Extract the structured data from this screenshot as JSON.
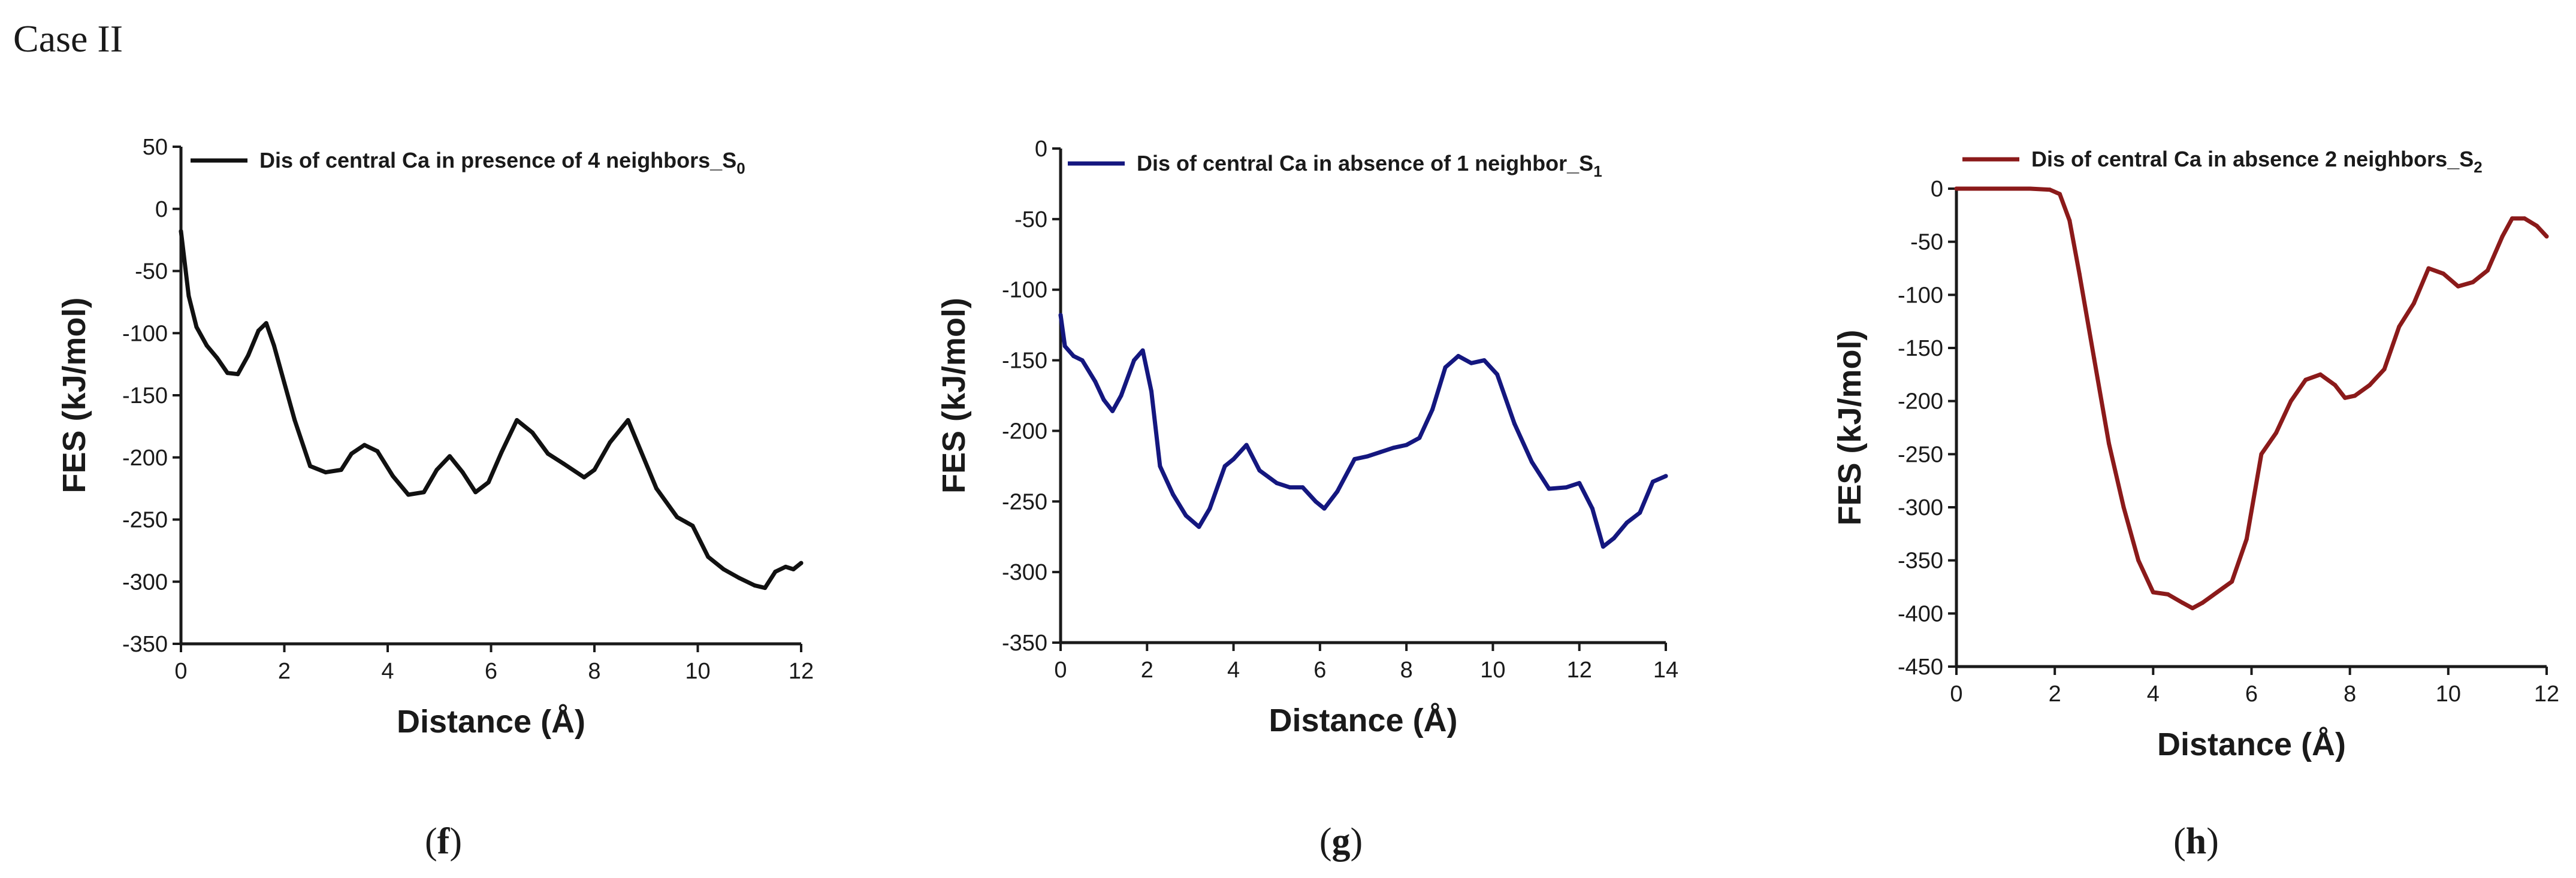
{
  "page_title": "Case II",
  "chart_data": [
    {
      "type": "line",
      "panel_label": "f",
      "color": "#111111",
      "legend": {
        "text": "Dis of central Ca in presence of 4 neighbors_S",
        "subscript": "0"
      },
      "xlabel": "Distance (Å)",
      "ylabel": "FES (kJ/mol)",
      "xlim": [
        0,
        12
      ],
      "ylim": [
        -350,
        50
      ],
      "xticks": [
        0,
        2,
        4,
        6,
        8,
        10,
        12
      ],
      "yticks": [
        50,
        0,
        -50,
        -100,
        -150,
        -200,
        -250,
        -300,
        -350
      ],
      "x": [
        0,
        0.15,
        0.3,
        0.5,
        0.7,
        0.9,
        1.1,
        1.3,
        1.5,
        1.65,
        1.8,
        2.0,
        2.2,
        2.5,
        2.8,
        3.1,
        3.3,
        3.55,
        3.8,
        4.1,
        4.4,
        4.7,
        4.95,
        5.2,
        5.45,
        5.7,
        5.95,
        6.2,
        6.5,
        6.8,
        7.1,
        7.4,
        7.8,
        8.0,
        8.3,
        8.65,
        8.9,
        9.2,
        9.6,
        9.9,
        10.2,
        10.5,
        10.8,
        11.1,
        11.3,
        11.5,
        11.7,
        11.85,
        12.0
      ],
      "y": [
        -18,
        -70,
        -95,
        -110,
        -120,
        -132,
        -133,
        -118,
        -98,
        -92,
        -110,
        -140,
        -170,
        -207,
        -212,
        -210,
        -197,
        -190,
        -195,
        -215,
        -230,
        -228,
        -210,
        -199,
        -212,
        -228,
        -220,
        -196,
        -170,
        -180,
        -197,
        -205,
        -216,
        -210,
        -188,
        -170,
        -195,
        -225,
        -248,
        -255,
        -280,
        -290,
        -297,
        -303,
        -305,
        -292,
        -288,
        -290,
        -285
      ]
    },
    {
      "type": "line",
      "panel_label": "g",
      "color": "#14177f",
      "legend": {
        "text": "Dis of central Ca in absence of 1 neighbor_S",
        "subscript": "1"
      },
      "xlabel": "Distance (Å)",
      "ylabel": "FES (kJ/mol)",
      "xlim": [
        0,
        14
      ],
      "ylim": [
        -350,
        0
      ],
      "xticks": [
        0,
        2,
        4,
        6,
        8,
        10,
        12,
        14
      ],
      "yticks": [
        0,
        -50,
        -100,
        -150,
        -200,
        -250,
        -300,
        -350
      ],
      "x": [
        0,
        0.1,
        0.3,
        0.5,
        0.8,
        1.0,
        1.2,
        1.4,
        1.7,
        1.9,
        2.1,
        2.3,
        2.6,
        2.9,
        3.2,
        3.45,
        3.8,
        4.0,
        4.3,
        4.6,
        5.0,
        5.3,
        5.6,
        5.9,
        6.1,
        6.4,
        6.8,
        7.1,
        7.4,
        7.7,
        8.0,
        8.3,
        8.6,
        8.9,
        9.2,
        9.5,
        9.8,
        10.1,
        10.5,
        10.9,
        11.3,
        11.7,
        12.0,
        12.3,
        12.55,
        12.8,
        13.1,
        13.4,
        13.7,
        14.0
      ],
      "y": [
        -118,
        -140,
        -147,
        -150,
        -165,
        -178,
        -186,
        -175,
        -150,
        -143,
        -172,
        -225,
        -245,
        -260,
        -268,
        -255,
        -225,
        -220,
        -210,
        -228,
        -237,
        -240,
        -240,
        -250,
        -255,
        -243,
        -220,
        -218,
        -215,
        -212,
        -210,
        -205,
        -185,
        -155,
        -147,
        -152,
        -150,
        -160,
        -195,
        -222,
        -241,
        -240,
        -237,
        -255,
        -282,
        -276,
        -265,
        -258,
        -236,
        -232
      ]
    },
    {
      "type": "line",
      "panel_label": "h",
      "color": "#8b1a1a",
      "legend": {
        "text": "Dis of central Ca in absence 2 neighbors_S",
        "subscript": "2"
      },
      "xlabel": "Distance (Å)",
      "ylabel": "FES (kJ/mol)",
      "xlim": [
        0,
        12
      ],
      "ylim": [
        -450,
        0
      ],
      "xticks": [
        0,
        2,
        4,
        6,
        8,
        10,
        12
      ],
      "yticks": [
        0,
        -50,
        -100,
        -150,
        -200,
        -250,
        -300,
        -350,
        -400,
        -450
      ],
      "x": [
        0,
        0.5,
        1.0,
        1.5,
        1.9,
        2.1,
        2.3,
        2.5,
        2.8,
        3.1,
        3.4,
        3.7,
        4.0,
        4.3,
        4.6,
        4.8,
        5.0,
        5.3,
        5.6,
        5.9,
        6.2,
        6.5,
        6.8,
        7.1,
        7.4,
        7.7,
        7.9,
        8.1,
        8.4,
        8.7,
        9.0,
        9.3,
        9.6,
        9.9,
        10.2,
        10.5,
        10.8,
        11.1,
        11.3,
        11.55,
        11.8,
        12.0
      ],
      "y": [
        0,
        0,
        0,
        0,
        -1,
        -5,
        -30,
        -80,
        -160,
        -240,
        -300,
        -350,
        -380,
        -382,
        -390,
        -395,
        -390,
        -380,
        -370,
        -330,
        -250,
        -230,
        -200,
        -180,
        -175,
        -185,
        -197,
        -195,
        -185,
        -170,
        -130,
        -108,
        -75,
        -80,
        -92,
        -88,
        -77,
        -45,
        -28,
        -28,
        -35,
        -45
      ]
    }
  ]
}
